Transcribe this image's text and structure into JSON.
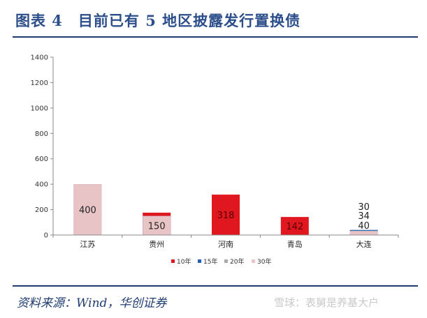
{
  "figure": {
    "title": "图表 4　目前已有 5 地区披露发行置换债",
    "source": "资料来源：Wind，华创证券",
    "watermark": "雪球：表舅是养基大户"
  },
  "colors": {
    "title": "#2c4e8a",
    "rule": "#1f3c70",
    "s10": "#e0171f",
    "s15": "#1f5fb4",
    "s20": "#a9a9a9",
    "s30": "#e8c4c7"
  },
  "chart_data": {
    "type": "bar",
    "stacked": true,
    "categories": [
      "江苏",
      "贵州",
      "河南",
      "青岛",
      "大连"
    ],
    "series": [
      {
        "name": "10年",
        "color": "#e0171f",
        "values": [
          0,
          176,
          318,
          142,
          0
        ]
      },
      {
        "name": "15年",
        "color": "#1f5fb4",
        "values": [
          400,
          150,
          0,
          0,
          40
        ]
      },
      {
        "name": "20年",
        "color": "#a9a9a9",
        "values": [
          400,
          0,
          0,
          0,
          34
        ]
      },
      {
        "name": "30年",
        "color": "#e8c4c7",
        "values": [
          400,
          150,
          0,
          0,
          30
        ]
      }
    ],
    "ylim": [
      0,
      1400
    ],
    "yticks": [
      0,
      200,
      400,
      600,
      800,
      1000,
      1200,
      1400
    ],
    "grid": false,
    "legend_position": "bottom"
  }
}
